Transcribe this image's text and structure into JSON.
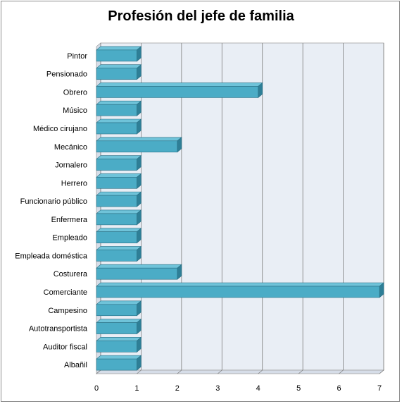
{
  "chart_data": {
    "type": "bar",
    "orientation": "horizontal",
    "title": "Profesión del jefe de familia",
    "xlabel": "",
    "ylabel": "",
    "xlim": [
      0,
      7
    ],
    "ticks": [
      "0",
      "1",
      "2",
      "3",
      "4",
      "5",
      "6",
      "7"
    ],
    "grid": true,
    "categories": [
      "Pintor",
      "Pensionado",
      "Obrero",
      "Músico",
      "Médico cirujano",
      "Mecánico",
      "Jornalero",
      "Herrero",
      "Funcionario público",
      "Enfermera",
      "Empleado",
      "Empleada doméstica",
      "Costurera",
      "Comerciante",
      "Campesino",
      "Autotransportista",
      "Auditor fiscal",
      "Albañil"
    ],
    "values": [
      1,
      1,
      4,
      1,
      1,
      2,
      1,
      1,
      1,
      1,
      1,
      1,
      2,
      7,
      1,
      1,
      1,
      1
    ],
    "colors": {
      "bar_front": "#4bacc6",
      "bar_top": "#6fc3d9",
      "bar_side": "#2e7f97",
      "plot_fill": "#e9eef5",
      "grid": "#808080"
    }
  }
}
